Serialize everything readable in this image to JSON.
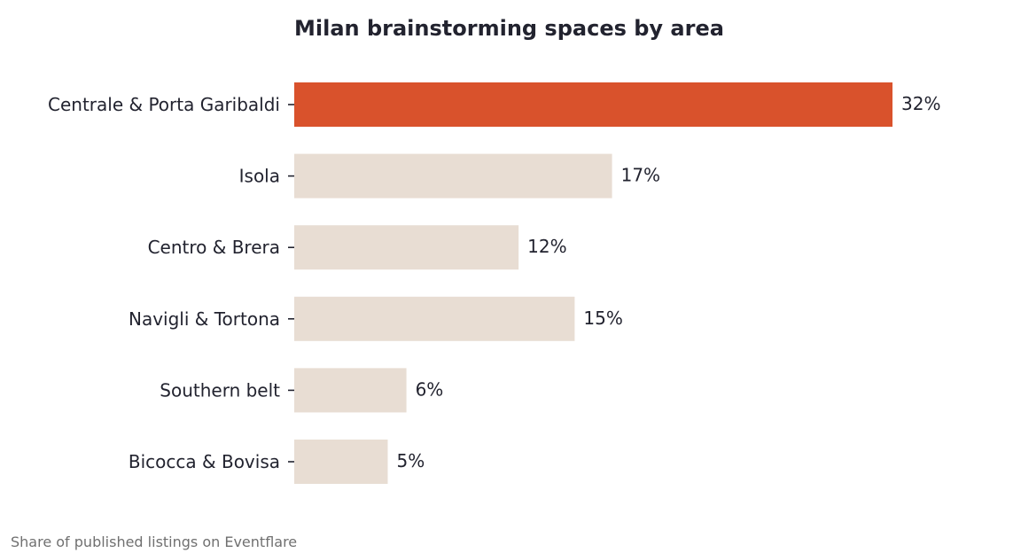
{
  "title": "Milan brainstorming spaces by area",
  "footnote": "Share of published listings on Eventflare",
  "colors": {
    "highlight": "#d9522c",
    "default": "#e8ddd3",
    "text": "#22232f",
    "muted": "#707070"
  },
  "chart_data": {
    "type": "bar",
    "orientation": "horizontal",
    "title": "Milan brainstorming spaces by area",
    "xlabel": "",
    "ylabel": "",
    "categories": [
      "Centrale & Porta Garibaldi",
      "Isola",
      "Centro & Brera",
      "Navigli & Tortona",
      "Southern belt",
      "Bicocca & Bovisa"
    ],
    "values": [
      32,
      17,
      12,
      15,
      6,
      5
    ],
    "value_labels": [
      "32%",
      "17%",
      "12%",
      "15%",
      "6%",
      "5%"
    ],
    "highlight_index": 0,
    "xlim": [
      0,
      32
    ],
    "grid": false,
    "legend": "none"
  }
}
